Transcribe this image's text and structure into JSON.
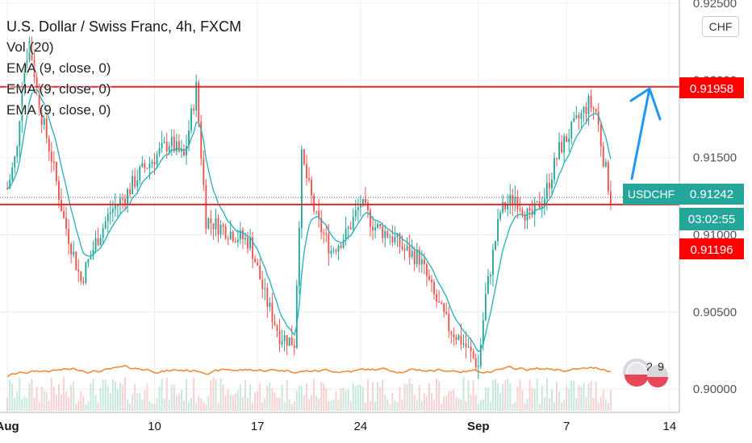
{
  "header": {
    "title": "U.S. Dollar / Swiss Franc, 4h, FXCM",
    "indicators": [
      "Vol (20)",
      "EMA (9, close, 0)",
      "EMA (9, close, 0)",
      "EMA (9, close, 0)"
    ],
    "currency_button": "CHF"
  },
  "price_tags": {
    "resistance": "0.91958",
    "current_symbol": "USDCHF",
    "current": "0.91242",
    "countdown": "03:02:55",
    "support": "0.91196"
  },
  "events": {
    "badge_left": "2",
    "badge_right": "9"
  },
  "colors": {
    "up": "#26a69a",
    "down": "#ef5350",
    "ema": "#2fb3bd",
    "level": "#e8262a",
    "arrow": "#2196f3",
    "volume_ma": "#f48a36",
    "current_tag": "#26a69a"
  },
  "chart_data": {
    "type": "candlestick",
    "title": "U.S. Dollar / Swiss Franc, 4h, FXCM",
    "ylim": [
      0.8985,
      0.9252
    ],
    "y_ticks": [
      "0.90000",
      "0.90500",
      "0.91000",
      "0.91500",
      "0.92000",
      "0.92500"
    ],
    "x_ticks": [
      "Aug",
      "10",
      "17",
      "24",
      "Sep",
      "7",
      "14"
    ],
    "horizontal_levels": [
      0.91958,
      0.91196
    ],
    "current_price": 0.91242,
    "grid": true,
    "series": [
      {
        "name": "USDCHF",
        "anchors": [
          [
            "2020-07-31 00:00",
            0.913
          ],
          [
            "2020-07-31 16:00",
            0.9155
          ],
          [
            "2020-08-01 00:00",
            0.92
          ],
          [
            "2020-08-01 12:00",
            0.9225
          ],
          [
            "2020-08-02 06:00",
            0.918
          ],
          [
            "2020-08-03 00:00",
            0.915
          ],
          [
            "2020-08-03 20:00",
            0.911
          ],
          [
            "2020-08-05 00:00",
            0.907
          ],
          [
            "2020-08-06 00:00",
            0.9095
          ],
          [
            "2020-08-07 00:00",
            0.9115
          ],
          [
            "2020-08-08 00:00",
            0.9125
          ],
          [
            "2020-08-09 00:00",
            0.914
          ],
          [
            "2020-08-10 00:00",
            0.915
          ],
          [
            "2020-08-11 00:00",
            0.916
          ],
          [
            "2020-08-12 00:00",
            0.915
          ],
          [
            "2020-08-12 20:00",
            0.9195
          ],
          [
            "2020-08-13 12:00",
            0.911
          ],
          [
            "2020-08-14 12:00",
            0.9105
          ],
          [
            "2020-08-15 12:00",
            0.91
          ],
          [
            "2020-08-16 12:00",
            0.9095
          ],
          [
            "2020-08-17 12:00",
            0.906
          ],
          [
            "2020-08-18 12:00",
            0.9035
          ],
          [
            "2020-08-19 12:00",
            0.903
          ],
          [
            "2020-08-20 00:00",
            0.915
          ],
          [
            "2020-08-21 00:00",
            0.911
          ],
          [
            "2020-08-22 00:00",
            0.909
          ],
          [
            "2020-08-23 00:00",
            0.91
          ],
          [
            "2020-08-24 00:00",
            0.912
          ],
          [
            "2020-08-25 00:00",
            0.9105
          ],
          [
            "2020-08-26 00:00",
            0.91
          ],
          [
            "2020-08-27 00:00",
            0.909
          ],
          [
            "2020-08-28 00:00",
            0.9085
          ],
          [
            "2020-08-29 00:00",
            0.906
          ],
          [
            "2020-08-30 00:00",
            0.904
          ],
          [
            "2020-08-31 00:00",
            0.903
          ],
          [
            "2020-09-01 00:00",
            0.9015
          ],
          [
            "2020-09-01 12:00",
            0.906
          ],
          [
            "2020-09-02 12:00",
            0.9115
          ],
          [
            "2020-09-03 12:00",
            0.9125
          ],
          [
            "2020-09-04 12:00",
            0.911
          ],
          [
            "2020-09-05 12:00",
            0.9125
          ],
          [
            "2020-09-06 12:00",
            0.9155
          ],
          [
            "2020-09-07 12:00",
            0.917
          ],
          [
            "2020-09-08 12:00",
            0.9185
          ],
          [
            "2020-09-09 00:00",
            0.918
          ],
          [
            "2020-09-09 12:00",
            0.915
          ],
          [
            "2020-09-10 00:00",
            0.9124
          ]
        ]
      }
    ],
    "annotations": [
      "Upward blue arrow projecting a breakout above 0.91958"
    ]
  }
}
